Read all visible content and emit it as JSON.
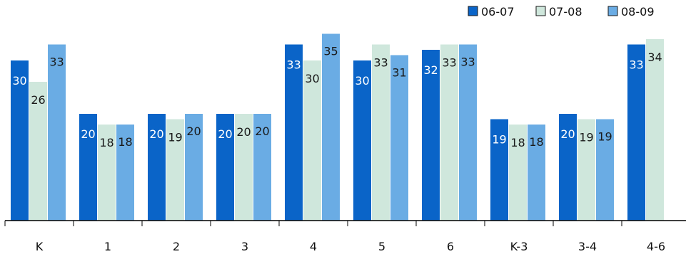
{
  "chart_data": {
    "type": "bar",
    "categories": [
      "K",
      "1",
      "2",
      "3",
      "4",
      "5",
      "6",
      "K-3",
      "3-4",
      "4-6"
    ],
    "series": [
      {
        "name": "06-07",
        "color": "#0a64c8",
        "values": [
          30,
          20,
          20,
          20,
          33,
          30,
          32,
          19,
          20,
          33
        ]
      },
      {
        "name": "07-08",
        "color": "#cfe7dc",
        "values": [
          26,
          18,
          19,
          20,
          30,
          33,
          33,
          18,
          19,
          34
        ]
      },
      {
        "name": "08-09",
        "color": "#6aace4",
        "values": [
          33,
          18,
          20,
          20,
          35,
          31,
          33,
          18,
          19,
          null
        ]
      }
    ],
    "title": "",
    "xlabel": "",
    "ylabel": "",
    "ylim": [
      0,
      37
    ],
    "grid": false,
    "legend": "top-right"
  }
}
